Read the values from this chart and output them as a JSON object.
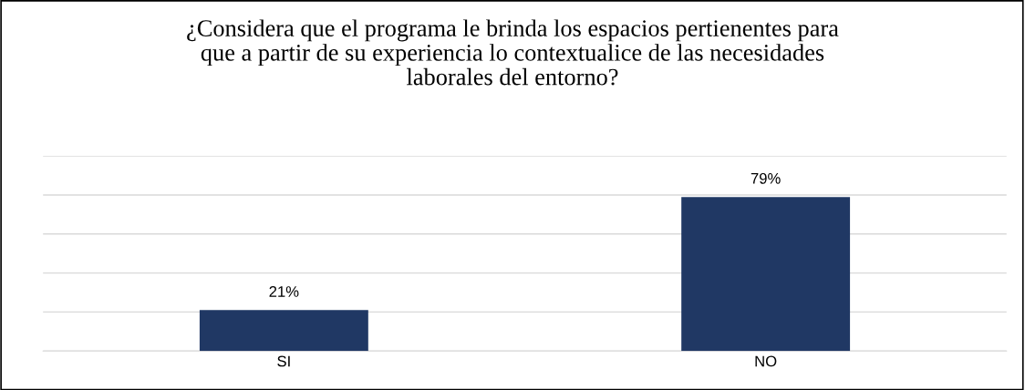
{
  "chart_data": {
    "type": "bar",
    "title": "¿Considera que el programa le brinda los espacios pertienentes para\nque a partir de su experiencia lo contextualice de las necesidades\nlaborales del entorno?",
    "categories": [
      "SI",
      "NO"
    ],
    "values": [
      21,
      79
    ],
    "value_labels": [
      "21%",
      "79%"
    ],
    "color": "#203864",
    "ylim": [
      0,
      100
    ],
    "yticks": [
      {
        "value": 0,
        "label": null
      },
      {
        "value": 20,
        "label": null
      },
      {
        "value": 40,
        "label": null
      },
      {
        "value": 60,
        "label": null
      },
      {
        "value": 80,
        "label": null
      },
      {
        "value": 100,
        "label": null
      }
    ],
    "tick_labels": "x",
    "grid": "y",
    "legend": false
  }
}
